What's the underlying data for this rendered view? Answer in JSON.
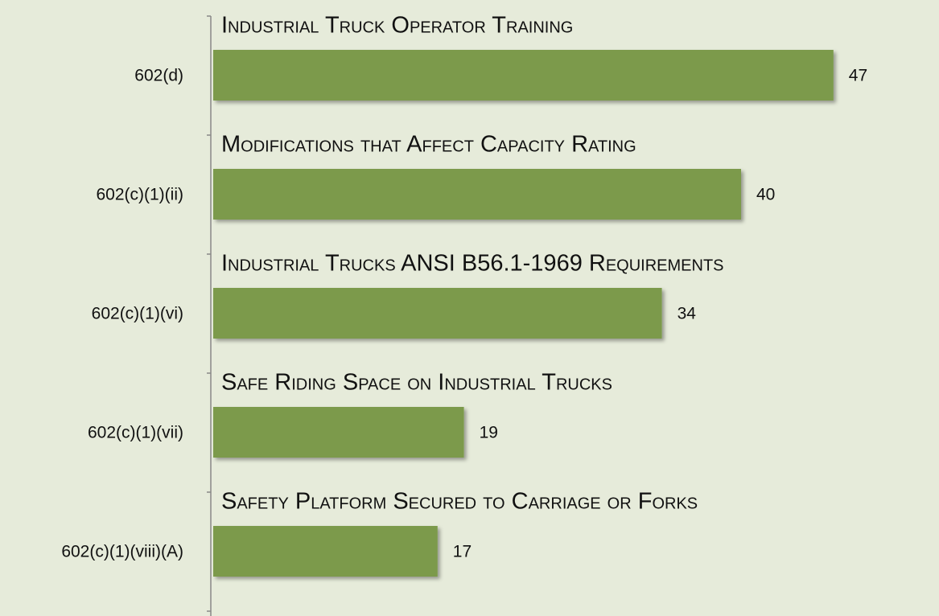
{
  "chart_data": {
    "type": "bar",
    "orientation": "horizontal",
    "categories": [
      "602(d)",
      "602(c)(1)(ii)",
      "602(c)(1)(vi)",
      "602(c)(1)(vii)",
      "602(c)(1)(viii)(A)"
    ],
    "descriptions": [
      "Industrial Truck Operator Training",
      "Modifications that Affect Capacity Rating",
      "Industrial Trucks ANSI B56.1-1969 Requirements",
      "Safe Riding Space on Industrial Trucks",
      "Safety Platform Secured to Carriage or Forks"
    ],
    "values": [
      47,
      40,
      34,
      19,
      17
    ],
    "color": "#7b9a4b",
    "xlim": [
      0,
      55
    ]
  }
}
